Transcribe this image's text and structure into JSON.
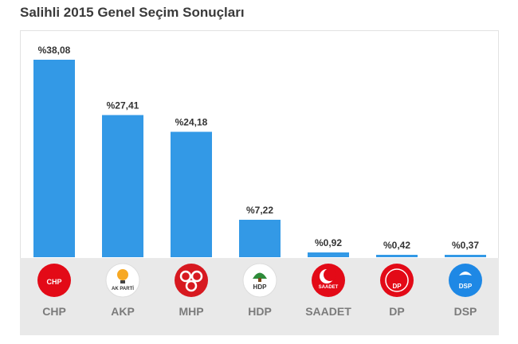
{
  "chart_data": {
    "type": "bar",
    "title": "Salihli 2015 Genel Seçim Sonuçları",
    "categories": [
      "CHP",
      "AKP",
      "MHP",
      "HDP",
      "SAADET",
      "DP",
      "DSP"
    ],
    "values": [
      38.08,
      27.41,
      24.18,
      7.22,
      0.92,
      0.42,
      0.37
    ],
    "value_labels": [
      "%38,08",
      "%27,41",
      "%24,18",
      "%7,22",
      "%0,92",
      "%0,42",
      "%0,37"
    ],
    "logo_texts": [
      "CHP",
      "AK PARTİ",
      "",
      "HDP",
      "SAADET",
      "DP",
      "DSP"
    ],
    "ylim": [
      0,
      38.08
    ],
    "grid": false,
    "bar_color": "#3399e6",
    "logo_colors": [
      "#e30a17",
      "#f7a823",
      "#d71920",
      "#9b9b9b",
      "#e30a17",
      "#e30a17",
      "#1e88e5"
    ]
  }
}
